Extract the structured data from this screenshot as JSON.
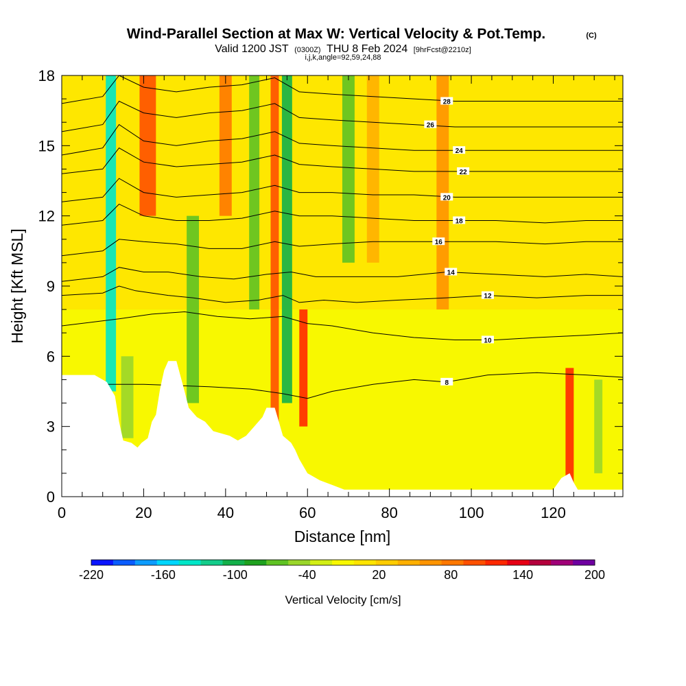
{
  "title": {
    "main": "Wind-Parallel Section at Max W: Vertical Velocity & Pot.Temp.",
    "copyright": "(C)",
    "valid_prefix": "Valid 1200 JST",
    "valid_z": "(0300Z)",
    "valid_date": "THU 8 Feb 2024",
    "forecast": "[9hrFcst@2210z]",
    "params": "i,j,k,angle=92,59,24,88"
  },
  "chart_data": {
    "type": "heatmap",
    "xlabel": "Distance [nm]",
    "ylabel": "Height [Kft MSL]",
    "xlim": [
      0,
      137
    ],
    "ylim": [
      0,
      18
    ],
    "x_ticks": [
      "0",
      "20",
      "40",
      "60",
      "80",
      "100",
      "120"
    ],
    "x_tick_values": [
      0,
      20,
      40,
      60,
      80,
      100,
      120
    ],
    "y_ticks": [
      "0",
      "3",
      "6",
      "9",
      "12",
      "15",
      "18"
    ],
    "y_tick_values": [
      0,
      3,
      6,
      9,
      12,
      15,
      18
    ],
    "colorbar": {
      "title": "Vertical Velocity [cm/s]",
      "min": -220,
      "max": 200,
      "step": 20,
      "labels": [
        "-220",
        "-160",
        "-100",
        "-40",
        "20",
        "80",
        "140",
        "200"
      ],
      "label_values": [
        -220,
        -160,
        -100,
        -40,
        20,
        80,
        140,
        200
      ],
      "colors": [
        "#0a14ff",
        "#0a5cff",
        "#0c9cff",
        "#00d6ff",
        "#00e6c8",
        "#13cc8a",
        "#13b04a",
        "#1ea11e",
        "#5fc223",
        "#9ad62a",
        "#d2ee14",
        "#f8f800",
        "#ffe400",
        "#ffcc00",
        "#ffb000",
        "#ff9400",
        "#ff7800",
        "#ff5000",
        "#ff2800",
        "#e60014",
        "#b4003c",
        "#a00078",
        "#6e00a0"
      ]
    },
    "terrain_kft": [
      [
        0,
        5.2
      ],
      [
        8,
        5.2
      ],
      [
        11,
        4.9
      ],
      [
        13,
        4.3
      ],
      [
        14,
        3.2
      ],
      [
        15,
        2.4
      ],
      [
        17,
        2.3
      ],
      [
        18.5,
        2.1
      ],
      [
        19.5,
        2.3
      ],
      [
        21,
        2.5
      ],
      [
        22,
        3.2
      ],
      [
        23,
        3.5
      ],
      [
        24,
        4.6
      ],
      [
        25,
        5.4
      ],
      [
        26,
        5.8
      ],
      [
        28,
        5.8
      ],
      [
        30,
        4.5
      ],
      [
        31,
        3.8
      ],
      [
        33,
        3.4
      ],
      [
        35,
        3.2
      ],
      [
        37,
        2.8
      ],
      [
        39,
        2.7
      ],
      [
        41,
        2.6
      ],
      [
        43,
        2.4
      ],
      [
        45,
        2.6
      ],
      [
        47,
        3.0
      ],
      [
        49,
        3.4
      ],
      [
        50,
        3.8
      ],
      [
        52,
        3.8
      ],
      [
        53,
        3.2
      ],
      [
        54,
        2.6
      ],
      [
        56,
        2.3
      ],
      [
        57,
        2.0
      ],
      [
        58,
        1.6
      ],
      [
        60,
        1.0
      ],
      [
        61,
        0.9
      ],
      [
        63,
        0.7
      ],
      [
        66,
        0.5
      ],
      [
        69,
        0.3
      ],
      [
        120,
        0.3
      ],
      [
        122,
        0.8
      ],
      [
        124,
        1.0
      ],
      [
        125,
        0.6
      ],
      [
        126,
        0.3
      ],
      [
        137,
        0.3
      ]
    ],
    "theta_contours": [
      {
        "label": "8",
        "points": [
          [
            0,
            4.8
          ],
          [
            20,
            4.8
          ],
          [
            36,
            4.7
          ],
          [
            46,
            4.6
          ],
          [
            54,
            4.4
          ],
          [
            60,
            4.2
          ],
          [
            66,
            4.5
          ],
          [
            76,
            4.8
          ],
          [
            86,
            5.0
          ],
          [
            94,
            4.9
          ],
          [
            104,
            5.2
          ],
          [
            116,
            5.3
          ],
          [
            128,
            5.2
          ],
          [
            137,
            5.1
          ]
        ],
        "label_at": [
          94,
          4.9
        ]
      },
      {
        "label": "10",
        "points": [
          [
            0,
            7.3
          ],
          [
            14,
            7.6
          ],
          [
            22,
            7.8
          ],
          [
            30,
            7.9
          ],
          [
            38,
            7.7
          ],
          [
            46,
            7.6
          ],
          [
            54,
            7.7
          ],
          [
            60,
            7.4
          ],
          [
            66,
            7.3
          ],
          [
            76,
            7.0
          ],
          [
            86,
            6.8
          ],
          [
            96,
            6.7
          ],
          [
            106,
            6.7
          ],
          [
            116,
            6.8
          ],
          [
            128,
            6.9
          ],
          [
            137,
            7.0
          ]
        ],
        "label_at": [
          104,
          6.7
        ]
      },
      {
        "label": "12",
        "points": [
          [
            0,
            8.6
          ],
          [
            10,
            8.7
          ],
          [
            14,
            9.0
          ],
          [
            18,
            8.8
          ],
          [
            26,
            8.6
          ],
          [
            32,
            8.5
          ],
          [
            40,
            8.3
          ],
          [
            48,
            8.4
          ],
          [
            54,
            8.6
          ],
          [
            58,
            8.3
          ],
          [
            64,
            8.4
          ],
          [
            72,
            8.3
          ],
          [
            82,
            8.4
          ],
          [
            94,
            8.5
          ],
          [
            104,
            8.6
          ],
          [
            116,
            8.5
          ],
          [
            128,
            8.6
          ],
          [
            137,
            8.6
          ]
        ],
        "label_at": [
          104,
          8.6
        ]
      },
      {
        "label": "14",
        "points": [
          [
            0,
            9.2
          ],
          [
            10,
            9.4
          ],
          [
            14,
            9.8
          ],
          [
            20,
            9.6
          ],
          [
            26,
            9.6
          ],
          [
            34,
            9.4
          ],
          [
            42,
            9.3
          ],
          [
            50,
            9.5
          ],
          [
            56,
            9.6
          ],
          [
            62,
            9.4
          ],
          [
            72,
            9.4
          ],
          [
            82,
            9.4
          ],
          [
            94,
            9.6
          ],
          [
            106,
            9.5
          ],
          [
            118,
            9.4
          ],
          [
            128,
            9.5
          ],
          [
            137,
            9.4
          ]
        ],
        "label_at": [
          95,
          9.6
        ]
      },
      {
        "label": "16",
        "points": [
          [
            0,
            10.3
          ],
          [
            10,
            10.5
          ],
          [
            14,
            11.0
          ],
          [
            20,
            10.9
          ],
          [
            28,
            10.8
          ],
          [
            36,
            10.6
          ],
          [
            44,
            10.6
          ],
          [
            52,
            10.9
          ],
          [
            58,
            10.7
          ],
          [
            66,
            10.8
          ],
          [
            76,
            10.9
          ],
          [
            86,
            10.9
          ],
          [
            96,
            10.9
          ],
          [
            106,
            10.9
          ],
          [
            118,
            10.8
          ],
          [
            128,
            10.9
          ],
          [
            137,
            10.9
          ]
        ],
        "label_at": [
          92,
          10.9
        ]
      },
      {
        "label": "18",
        "points": [
          [
            0,
            11.6
          ],
          [
            10,
            11.8
          ],
          [
            14,
            12.5
          ],
          [
            20,
            12.0
          ],
          [
            28,
            11.8
          ],
          [
            36,
            11.8
          ],
          [
            44,
            11.9
          ],
          [
            52,
            12.2
          ],
          [
            58,
            12.0
          ],
          [
            66,
            12.0
          ],
          [
            76,
            11.9
          ],
          [
            86,
            11.8
          ],
          [
            96,
            11.8
          ],
          [
            106,
            11.8
          ],
          [
            118,
            11.7
          ],
          [
            128,
            11.8
          ],
          [
            137,
            11.8
          ]
        ],
        "label_at": [
          97,
          11.8
        ]
      },
      {
        "label": "20",
        "points": [
          [
            0,
            12.6
          ],
          [
            10,
            12.8
          ],
          [
            14,
            13.6
          ],
          [
            20,
            13.0
          ],
          [
            28,
            12.8
          ],
          [
            36,
            12.9
          ],
          [
            44,
            13.0
          ],
          [
            52,
            13.3
          ],
          [
            58,
            13.0
          ],
          [
            66,
            13.0
          ],
          [
            76,
            12.9
          ],
          [
            86,
            12.9
          ],
          [
            96,
            12.8
          ],
          [
            106,
            12.8
          ],
          [
            118,
            12.8
          ],
          [
            128,
            12.8
          ],
          [
            137,
            12.8
          ]
        ],
        "label_at": [
          94,
          12.8
        ]
      },
      {
        "label": "22",
        "points": [
          [
            0,
            13.8
          ],
          [
            10,
            14.0
          ],
          [
            14,
            14.9
          ],
          [
            20,
            14.3
          ],
          [
            28,
            14.1
          ],
          [
            36,
            14.2
          ],
          [
            44,
            14.3
          ],
          [
            52,
            14.6
          ],
          [
            58,
            14.2
          ],
          [
            66,
            14.1
          ],
          [
            76,
            14.0
          ],
          [
            86,
            13.9
          ],
          [
            96,
            13.9
          ],
          [
            106,
            13.9
          ],
          [
            118,
            13.9
          ],
          [
            128,
            13.9
          ],
          [
            137,
            13.9
          ]
        ],
        "label_at": [
          98,
          13.9
        ]
      },
      {
        "label": "24",
        "points": [
          [
            0,
            14.6
          ],
          [
            10,
            14.9
          ],
          [
            14,
            15.9
          ],
          [
            20,
            15.2
          ],
          [
            28,
            15.0
          ],
          [
            36,
            15.2
          ],
          [
            44,
            15.3
          ],
          [
            52,
            15.6
          ],
          [
            58,
            15.1
          ],
          [
            66,
            15.0
          ],
          [
            76,
            14.9
          ],
          [
            86,
            14.8
          ],
          [
            96,
            14.8
          ],
          [
            106,
            14.8
          ],
          [
            118,
            14.8
          ],
          [
            128,
            14.8
          ],
          [
            137,
            14.8
          ]
        ],
        "label_at": [
          97,
          14.8
        ]
      },
      {
        "label": "26",
        "points": [
          [
            0,
            15.6
          ],
          [
            10,
            15.9
          ],
          [
            14,
            16.9
          ],
          [
            20,
            16.4
          ],
          [
            28,
            16.2
          ],
          [
            36,
            16.4
          ],
          [
            44,
            16.5
          ],
          [
            52,
            16.8
          ],
          [
            58,
            16.2
          ],
          [
            66,
            16.1
          ],
          [
            76,
            16.0
          ],
          [
            86,
            15.9
          ],
          [
            96,
            15.8
          ],
          [
            106,
            15.8
          ],
          [
            118,
            15.8
          ],
          [
            128,
            15.8
          ],
          [
            137,
            15.8
          ]
        ],
        "label_at": [
          90,
          15.9
        ]
      },
      {
        "label": "28",
        "points": [
          [
            0,
            16.8
          ],
          [
            10,
            17.1
          ],
          [
            14,
            18.0
          ],
          [
            20,
            17.5
          ],
          [
            28,
            17.3
          ],
          [
            36,
            17.5
          ],
          [
            44,
            17.6
          ],
          [
            52,
            17.9
          ],
          [
            58,
            17.3
          ],
          [
            66,
            17.2
          ],
          [
            76,
            17.1
          ],
          [
            86,
            17.0
          ],
          [
            96,
            16.9
          ],
          [
            106,
            16.9
          ],
          [
            118,
            16.9
          ],
          [
            128,
            16.9
          ],
          [
            137,
            16.9
          ]
        ],
        "label_at": [
          94,
          16.9
        ]
      }
    ],
    "updraft_bands": [
      {
        "x": 12,
        "w": 2.5,
        "y0": 4.5,
        "y1": 18,
        "vv": -140
      },
      {
        "x": 21,
        "w": 4,
        "y0": 12,
        "y1": 18,
        "vv": 120
      },
      {
        "x": 16,
        "w": 3,
        "y0": 2.5,
        "y1": 6,
        "vv": -40
      },
      {
        "x": 32,
        "w": 3,
        "y0": 4,
        "y1": 12,
        "vv": -60
      },
      {
        "x": 40,
        "w": 3,
        "y0": 12,
        "y1": 18,
        "vv": 100
      },
      {
        "x": 47,
        "w": 2.5,
        "y0": 8,
        "y1": 18,
        "vv": -60
      },
      {
        "x": 52,
        "w": 2,
        "y0": 3,
        "y1": 18,
        "vv": 120
      },
      {
        "x": 55,
        "w": 2.5,
        "y0": 4,
        "y1": 18,
        "vv": -100
      },
      {
        "x": 59,
        "w": 2,
        "y0": 3,
        "y1": 8,
        "vv": 140
      },
      {
        "x": 70,
        "w": 3,
        "y0": 10,
        "y1": 18,
        "vv": -60
      },
      {
        "x": 76,
        "w": 3,
        "y0": 10,
        "y1": 18,
        "vv": 60
      },
      {
        "x": 93,
        "w": 3,
        "y0": 8,
        "y1": 18,
        "vv": 80
      },
      {
        "x": 124,
        "w": 2,
        "y0": 0.5,
        "y1": 5.5,
        "vv": 140
      },
      {
        "x": 131,
        "w": 2,
        "y0": 1,
        "y1": 5,
        "vv": -40
      }
    ]
  }
}
